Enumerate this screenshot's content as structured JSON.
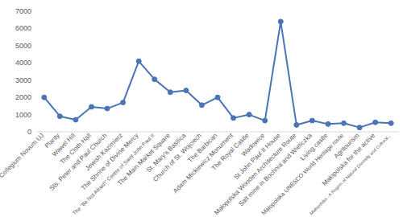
{
  "chart_data": {
    "type": "line",
    "categories": [
      "Collegium Novum UJ",
      "Planty",
      "Wawel Hill",
      "The Cloth Hall",
      "Sts. Peter and Paul Church",
      "Jewish Kazimierz",
      "The Shrine of Divine Mercy",
      "The \"Be Not Afraid!\" Centre of Saint John Paul II",
      "The Main Market Square",
      "St. Mary's Basilica",
      "Church of St. Wojciech",
      "The Barbican",
      "Adam Mickiewicz Monument",
      "The Royal Castle",
      "Wadowice",
      "St John Paul II House",
      "Małopolska Wooden Architecture Route",
      "Salt mine in Bochnia and Wieliczka",
      "Living castle",
      "Małopolska UNESCO World Heritage route",
      "Agritourism",
      "Małopolska for the active",
      "Małopolska - A Region of Natural Diversity and Cultural..."
    ],
    "values": [
      2000,
      900,
      700,
      1450,
      1350,
      1700,
      4100,
      3050,
      2300,
      2400,
      1550,
      2000,
      800,
      1000,
      650,
      6400,
      400,
      650,
      450,
      500,
      250,
      550,
      500
    ],
    "color": "#4a74b4",
    "marker": "circle",
    "ylim": [
      0,
      7000
    ],
    "yticks": [
      0,
      1000,
      2000,
      3000,
      4000,
      5000,
      6000,
      7000
    ],
    "grid": false
  }
}
